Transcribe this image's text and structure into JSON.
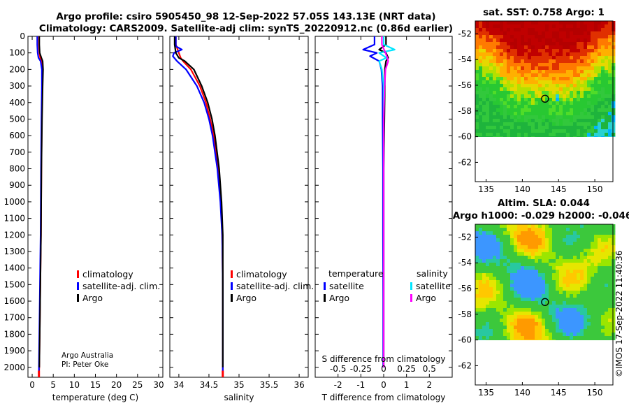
{
  "figure": {
    "title_line1": "Argo profile: csiro 5905450_98 12-Sep-2022 57.05S 143.13E (NRT data)",
    "title_line2": "Climatology: CARS2009. Satellite-adj clim: synTS_20220912.nc (0.86d earlier)",
    "credit_line1": "Argo Australia",
    "credit_line2": "PI: Peter Oke",
    "watermark": "©IMOS 17-Sep-2022 11:40:36"
  },
  "colors": {
    "climatology": "#ff0000",
    "satellite_clim": "#0000ff",
    "argo": "#000000",
    "temp_diff_satellite": "#0000ff",
    "temp_diff_argo": "#000000",
    "sal_diff_satellite": "#00e5ff",
    "sal_diff_argo": "#ff00ff"
  },
  "chart_data": [
    {
      "id": "temperature",
      "type": "line",
      "xlabel": "temperature (deg C)",
      "xlim": [
        -1,
        31
      ],
      "xticks": [
        "0",
        "5",
        "10",
        "15",
        "20",
        "25",
        "30"
      ],
      "xtick_values": [
        0,
        5,
        10,
        15,
        20,
        25,
        30
      ],
      "ylim": [
        0,
        2060
      ],
      "yticks": [
        "0",
        "100",
        "200",
        "300",
        "400",
        "500",
        "600",
        "700",
        "800",
        "900",
        "1000",
        "1100",
        "1200",
        "1300",
        "1400",
        "1500",
        "1600",
        "1700",
        "1800",
        "1900",
        "2000"
      ],
      "ytick_values": [
        0,
        100,
        200,
        300,
        400,
        500,
        600,
        700,
        800,
        900,
        1000,
        1100,
        1200,
        1300,
        1400,
        1500,
        1600,
        1700,
        1800,
        1900,
        2000
      ],
      "legend": [
        "climatology",
        "satellite-adj. clim.",
        "Argo"
      ],
      "series": [
        {
          "name": "climatology",
          "depth": [
            0,
            50,
            100,
            130,
            150,
            200,
            300,
            500,
            800,
            1200,
            1600,
            2000,
            2050
          ],
          "values": [
            1.6,
            1.6,
            1.7,
            1.9,
            2.3,
            2.5,
            2.4,
            2.3,
            2.2,
            2.1,
            1.9,
            1.7,
            1.6
          ]
        },
        {
          "name": "satellite-adj. clim.",
          "depth": [
            0,
            50,
            100,
            130,
            150,
            200,
            300,
            500,
            800,
            1200,
            1600,
            2000,
            2050
          ],
          "values": [
            1.2,
            1.2,
            1.3,
            1.5,
            2.0,
            2.3,
            2.3,
            2.2,
            2.1,
            2.0,
            1.8,
            1.6,
            1.6
          ]
        },
        {
          "name": "Argo",
          "depth": [
            0,
            50,
            100,
            130,
            150,
            200,
            300,
            500,
            800,
            1200,
            1600,
            2000
          ],
          "values": [
            1.7,
            1.7,
            1.8,
            2.2,
            2.5,
            2.6,
            2.5,
            2.35,
            2.2,
            2.1,
            1.9,
            1.7
          ]
        }
      ]
    },
    {
      "id": "salinity",
      "type": "line",
      "xlabel": "salinity",
      "xlim": [
        33.85,
        36.15
      ],
      "xticks": [
        "34",
        "34.5",
        "35",
        "35.5",
        "36"
      ],
      "xtick_values": [
        34,
        34.5,
        35,
        35.5,
        36
      ],
      "ylim": [
        0,
        2060
      ],
      "legend": [
        "climatology",
        "satellite-adj. clim.",
        "Argo"
      ],
      "series": [
        {
          "name": "climatology",
          "depth": [
            0,
            50,
            100,
            130,
            150,
            200,
            300,
            400,
            500,
            600,
            800,
            1000,
            1200,
            1500,
            2000,
            2050
          ],
          "values": [
            33.95,
            33.95,
            34.0,
            34.03,
            34.07,
            34.2,
            34.35,
            34.45,
            34.52,
            34.58,
            34.65,
            34.7,
            34.72,
            34.73,
            34.73,
            34.73
          ]
        },
        {
          "name": "satellite-adj. clim.",
          "depth": [
            0,
            60,
            80,
            100,
            120,
            150,
            200,
            300,
            400,
            500,
            600,
            800,
            1000,
            1200,
            1500,
            2000,
            2050
          ],
          "values": [
            33.95,
            33.95,
            34.05,
            33.92,
            33.9,
            33.97,
            34.12,
            34.3,
            34.42,
            34.5,
            34.56,
            34.64,
            34.69,
            34.72,
            34.73,
            34.73,
            34.73
          ]
        },
        {
          "name": "Argo",
          "depth": [
            0,
            50,
            100,
            130,
            150,
            200,
            300,
            400,
            500,
            600,
            800,
            1000,
            1200,
            1500,
            2000
          ],
          "values": [
            33.93,
            33.93,
            33.95,
            34.0,
            34.1,
            34.25,
            34.38,
            34.48,
            34.55,
            34.6,
            34.67,
            34.71,
            34.73,
            34.73,
            34.73
          ]
        }
      ]
    },
    {
      "id": "differences",
      "type": "line",
      "xlabel": "T difference from climatology",
      "xlabel_top": "S difference from climatology",
      "xlim": [
        -3,
        3
      ],
      "xticks": [
        "-2",
        "-1",
        "0",
        "1",
        "2"
      ],
      "xtick_values": [
        -2,
        -1,
        0,
        1,
        2
      ],
      "xticks_top": [
        "-0.5",
        "-0.25",
        "0",
        "0.25",
        "0.5"
      ],
      "xtick_top_values": [
        -0.5,
        -0.25,
        0,
        0.25,
        0.5
      ],
      "salinity_scale": 4,
      "ylim": [
        0,
        2060
      ],
      "legend_left_title": "temperature",
      "legend_right_title": "salinity",
      "legend_left": [
        "satellite",
        "Argo"
      ],
      "legend_right": [
        "satellite",
        "Argo"
      ],
      "series": [
        {
          "name": "temperature satellite",
          "depth": [
            0,
            50,
            80,
            100,
            120,
            150,
            200,
            300,
            500,
            800,
            1200,
            1600,
            2000
          ],
          "values": [
            -0.4,
            -0.4,
            -0.9,
            -0.3,
            -0.6,
            -0.2,
            -0.1,
            -0.05,
            -0.05,
            -0.03,
            -0.03,
            -0.02,
            -0.02
          ]
        },
        {
          "name": "temperature Argo",
          "depth": [
            0,
            50,
            80,
            100,
            130,
            150,
            200,
            300,
            500,
            800,
            1200,
            1600,
            2000
          ],
          "values": [
            0.1,
            0.1,
            -0.2,
            0.1,
            0.2,
            0.1,
            0.05,
            0.05,
            0.03,
            0.0,
            0.0,
            0.0,
            0.0
          ]
        },
        {
          "name": "salinity satellite",
          "depth": [
            0,
            50,
            80,
            100,
            130,
            150,
            200,
            300,
            500,
            800,
            1200,
            1600,
            2000
          ],
          "values": [
            0.0,
            0.0,
            0.12,
            -0.05,
            0.03,
            -0.05,
            -0.02,
            0.0,
            0.0,
            0.0,
            0.0,
            0.0,
            0.0
          ]
        },
        {
          "name": "salinity Argo",
          "depth": [
            0,
            50,
            100,
            130,
            150,
            200,
            300,
            500,
            800,
            1200,
            1600,
            2000
          ],
          "values": [
            -0.02,
            -0.02,
            0.02,
            0.04,
            0.05,
            0.02,
            0.01,
            0.0,
            0.0,
            0.0,
            0.0,
            0.0
          ]
        }
      ]
    },
    {
      "id": "sst_map",
      "type": "heatmap",
      "title": "sat. SST: 0.758 Argo: 1",
      "xlim": [
        133.5,
        152.5
      ],
      "ylim": [
        -63.5,
        -51
      ],
      "xticks": [
        "135",
        "140",
        "145",
        "150"
      ],
      "xtick_values": [
        135,
        140,
        145,
        150
      ],
      "yticks": [
        "-52",
        "-54",
        "-56",
        "-58",
        "-60",
        "-62"
      ],
      "ytick_values": [
        -52,
        -54,
        -56,
        -58,
        -60,
        -62
      ],
      "data_extent_lat": [
        -60,
        -51
      ],
      "marker": {
        "lon": 143.13,
        "lat": -57.05
      }
    },
    {
      "id": "sla_map",
      "type": "heatmap",
      "title": "Altim. SLA: 0.044",
      "subtitle": "Argo h1000: -0.029 h2000: -0.046",
      "xlim": [
        133.5,
        152.5
      ],
      "ylim": [
        -63.5,
        -51
      ],
      "xticks": [
        "135",
        "140",
        "145",
        "150"
      ],
      "xtick_values": [
        135,
        140,
        145,
        150
      ],
      "yticks": [
        "-52",
        "-54",
        "-56",
        "-58",
        "-60",
        "-62"
      ],
      "ytick_values": [
        -52,
        -54,
        -56,
        -58,
        -60,
        -62
      ],
      "data_extent_lat": [
        -60,
        -51
      ],
      "marker": {
        "lon": 143.13,
        "lat": -57.05
      }
    }
  ]
}
